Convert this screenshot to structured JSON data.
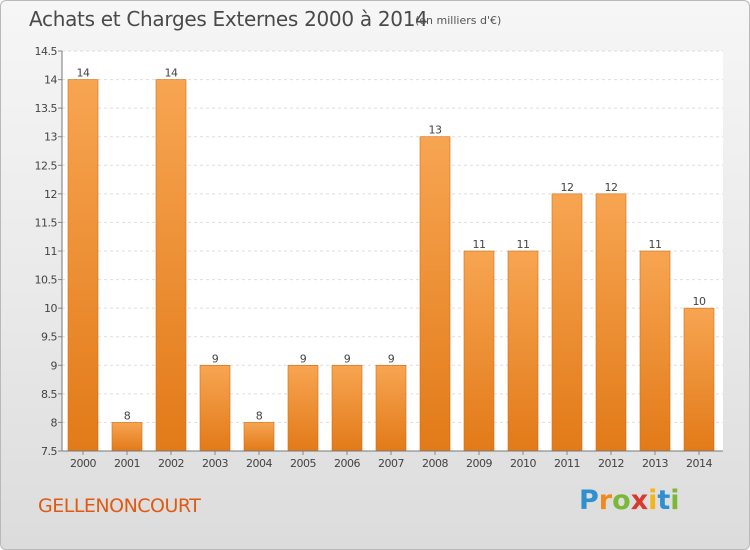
{
  "header": {
    "title": "Achats et Charges Externes 2000 à 2014",
    "subtitle": "(en milliers d'€)"
  },
  "footer": {
    "commune": "GELLENONCOURT",
    "logo": "Proxiti"
  },
  "colors": {
    "bar_light": "#f7a552",
    "bar_dark": "#e27a18",
    "bar_edge": "#d06e14",
    "commune": "#e05a12",
    "axis_text": "#444444"
  },
  "chart_data": {
    "type": "bar",
    "categories": [
      "2000",
      "2001",
      "2002",
      "2003",
      "2004",
      "2005",
      "2006",
      "2007",
      "2008",
      "2009",
      "2010",
      "2011",
      "2012",
      "2013",
      "2014"
    ],
    "values": [
      14,
      8,
      14,
      9,
      8,
      9,
      9,
      9,
      13,
      11,
      11,
      12,
      12,
      11,
      10
    ],
    "data_labels": [
      "14",
      "8",
      "14",
      "9",
      "8",
      "9",
      "9",
      "9",
      "13",
      "11",
      "11",
      "12",
      "12",
      "11",
      "10"
    ],
    "ylim": [
      7.5,
      14.5
    ],
    "yticks": [
      7.5,
      8,
      8.5,
      9,
      9.5,
      10,
      10.5,
      11,
      11.5,
      12,
      12.5,
      13,
      13.5,
      14,
      14.5
    ],
    "ytick_labels": [
      "7.5",
      "8",
      "8.5",
      "9",
      "9.5",
      "10",
      "10.5",
      "11",
      "11.5",
      "12",
      "12.5",
      "13",
      "13.5",
      "14",
      "14.5"
    ],
    "grid": true,
    "xlabel": "",
    "ylabel": ""
  }
}
